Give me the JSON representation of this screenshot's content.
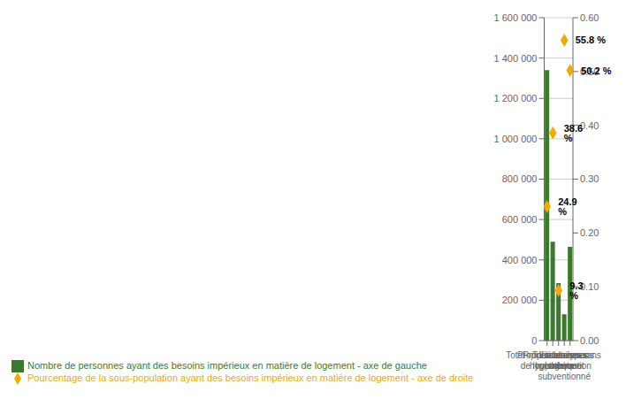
{
  "chart_data": {
    "type": "bar",
    "categories": [
      "Total - Tous les types\nde logements",
      "Propriétaires avec\nhypothèque",
      "Propriétaires sans\nhypothèque",
      "Locataires -\nLogement\nsubventionné",
      "Locataires sans\nsubvention"
    ],
    "series": [
      {
        "name": "Nombre de personnes ayant des besoins impérieux en matière de logement - axe de gauche",
        "type": "bar",
        "color": "#3a7a2a",
        "values": [
          1340000,
          490000,
          285000,
          130000,
          465000
        ]
      },
      {
        "name": "Pourcentage de la sous-population ayant des besoins impérieux en matière de logement - axe de droite",
        "type": "scatter",
        "marker": "diamond",
        "color": "#f5a800",
        "axis": "y2",
        "data_labels": true,
        "values": [
          0.249,
          0.386,
          0.093,
          0.558,
          0.502
        ],
        "value_labels": [
          "24.9 %",
          "38.6 %",
          "9.3 %",
          "55.8 %",
          "50.2 %"
        ]
      }
    ],
    "ylim": [
      0,
      1600000
    ],
    "yticks": [
      0,
      {
        "value": 200000,
        "label": "200 000"
      },
      {
        "value": 400000,
        "label": "400 000"
      },
      {
        "value": 600000,
        "label": "600 000"
      },
      {
        "value": 800000,
        "label": "800 000"
      },
      {
        "value": 1000000,
        "label": "1 000 000"
      },
      {
        "value": 1200000,
        "label": "1 200 000"
      },
      {
        "value": 1400000,
        "label": "1 400 000"
      },
      {
        "value": 1600000,
        "label": "1 600 000"
      }
    ],
    "y2lim": [
      0,
      0.6
    ],
    "y2ticks": [
      {
        "value": 0,
        "label": "0.00"
      },
      {
        "value": 0.1,
        "label": "0.10"
      },
      {
        "value": 0.2,
        "label": "0.20"
      },
      {
        "value": 0.3,
        "label": "0.30"
      },
      {
        "value": 0.4,
        "label": "0.40"
      },
      {
        "value": 0.5,
        "label": "0.50"
      },
      {
        "value": 0.6,
        "label": "0.60"
      }
    ],
    "grid": true,
    "legend": "lower left"
  }
}
